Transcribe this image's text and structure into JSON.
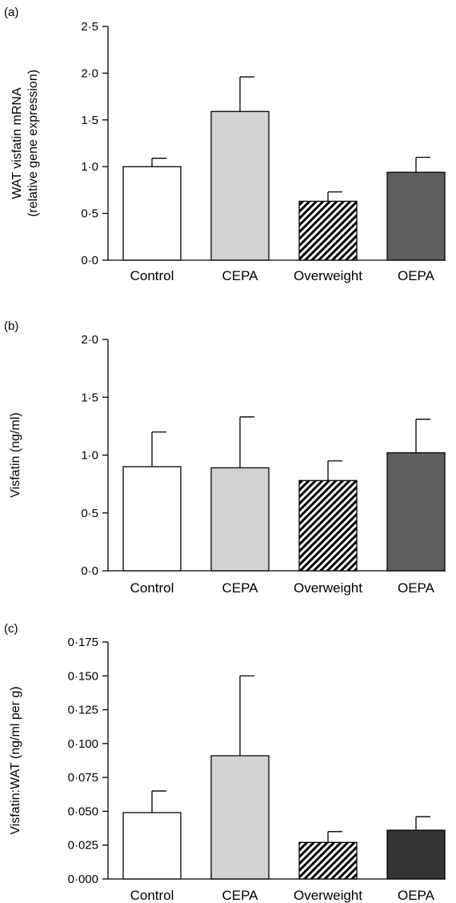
{
  "chart_data": [
    {
      "type": "bar",
      "panel_label": "(a)",
      "categories": [
        "Control",
        "CEPA",
        "Overweight",
        "OEPA"
      ],
      "values": [
        1.0,
        1.59,
        0.63,
        0.94
      ],
      "errors": [
        0.09,
        0.37,
        0.1,
        0.16
      ],
      "ylabel_line1": "WAT visfatin mRNA",
      "ylabel_line2": "(relative gene expression)",
      "ylim": [
        0,
        2.5
      ],
      "yticks": [
        0,
        0.5,
        1.0,
        1.5,
        2.0,
        2.5
      ],
      "ytick_labels": [
        "0·0",
        "0·5",
        "1·0",
        "1·5",
        "2·0",
        "2·5"
      ],
      "bar_fills": [
        "#ffffff",
        "#d3d3d3",
        "hatch",
        "#606060"
      ]
    },
    {
      "type": "bar",
      "panel_label": "(b)",
      "categories": [
        "Control",
        "CEPA",
        "Overweight",
        "OEPA"
      ],
      "values": [
        0.9,
        0.89,
        0.78,
        1.02
      ],
      "errors": [
        0.3,
        0.44,
        0.17,
        0.29
      ],
      "ylabel_line1": "Visfatin (ng/ml)",
      "ylabel_line2": "",
      "ylim": [
        0,
        2.0
      ],
      "yticks": [
        0,
        0.5,
        1.0,
        1.5,
        2.0
      ],
      "ytick_labels": [
        "0·0",
        "0·5",
        "1·0",
        "1·5",
        "2·0"
      ],
      "bar_fills": [
        "#ffffff",
        "#d3d3d3",
        "hatch",
        "#606060"
      ]
    },
    {
      "type": "bar",
      "panel_label": "(c)",
      "categories": [
        "Control",
        "CEPA",
        "Overweight",
        "OEPA"
      ],
      "values": [
        0.049,
        0.091,
        0.027,
        0.036
      ],
      "errors": [
        0.016,
        0.059,
        0.008,
        0.01
      ],
      "ylabel_line1": "Visfatin:WAT (ng/ml per g)",
      "ylabel_line2": "",
      "ylim": [
        0,
        0.175
      ],
      "yticks": [
        0,
        0.025,
        0.05,
        0.075,
        0.1,
        0.125,
        0.15,
        0.175
      ],
      "ytick_labels": [
        "0·000",
        "0·025",
        "0·050",
        "0·075",
        "0·100",
        "0·125",
        "0·150",
        "0·175"
      ],
      "bar_fills": [
        "#ffffff",
        "#d3d3d3",
        "hatch",
        "#333333"
      ]
    }
  ]
}
